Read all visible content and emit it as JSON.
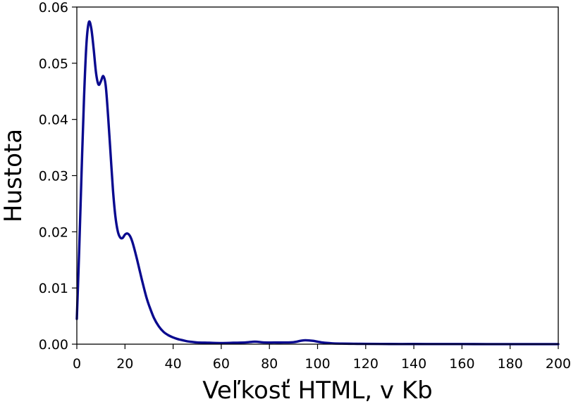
{
  "chart_data": {
    "type": "line",
    "title": "",
    "xlabel": "Veľkosť HTML, v Kb",
    "ylabel": "Hustota",
    "xlim": [
      0,
      200
    ],
    "ylim": [
      0,
      0.06
    ],
    "grid": false,
    "x_ticks": [
      0,
      20,
      40,
      60,
      80,
      100,
      120,
      140,
      160,
      180,
      200
    ],
    "x_tick_labels": [
      "0",
      "20",
      "40",
      "60",
      "80",
      "100",
      "120",
      "140",
      "160",
      "180",
      "200"
    ],
    "y_ticks": [
      0,
      0.01,
      0.02,
      0.03,
      0.04,
      0.05,
      0.06
    ],
    "y_tick_labels": [
      "0.00",
      "0.01",
      "0.02",
      "0.03",
      "0.04",
      "0.05",
      "0.06"
    ],
    "series": [
      {
        "color": "#0a0a8f",
        "x": [
          0,
          1,
          2,
          3,
          4,
          5,
          6,
          7,
          8,
          9,
          10,
          11,
          12,
          13,
          14,
          15,
          16,
          17,
          18,
          19,
          20,
          21,
          22,
          23,
          24,
          25,
          26,
          27,
          28,
          29,
          30,
          32,
          34,
          36,
          38,
          40,
          42,
          44,
          46,
          48,
          50,
          55,
          60,
          65,
          70,
          74,
          78,
          82,
          86,
          90,
          93,
          95,
          98,
          102,
          106,
          110,
          115,
          120,
          130,
          140,
          150,
          160,
          170,
          180,
          190,
          200
        ],
        "y": [
          0.0045,
          0.017,
          0.031,
          0.044,
          0.0535,
          0.0573,
          0.0562,
          0.0525,
          0.0482,
          0.0462,
          0.0468,
          0.0477,
          0.046,
          0.0405,
          0.034,
          0.0275,
          0.0228,
          0.0201,
          0.019,
          0.0189,
          0.0195,
          0.0197,
          0.0193,
          0.0183,
          0.0168,
          0.0151,
          0.0133,
          0.0115,
          0.0098,
          0.0082,
          0.0069,
          0.0047,
          0.0032,
          0.0022,
          0.0016,
          0.0012,
          0.0009,
          0.0007,
          0.0005,
          0.0004,
          0.0003,
          0.00025,
          0.0002,
          0.00025,
          0.0003,
          0.00045,
          0.0003,
          0.0003,
          0.0003,
          0.00035,
          0.0006,
          0.0007,
          0.0006,
          0.0003,
          0.00015,
          0.0001,
          7e-05,
          5e-05,
          3e-05,
          3e-05,
          2e-05,
          2e-05,
          1e-05,
          1e-05,
          1e-05,
          1e-05
        ]
      }
    ]
  }
}
